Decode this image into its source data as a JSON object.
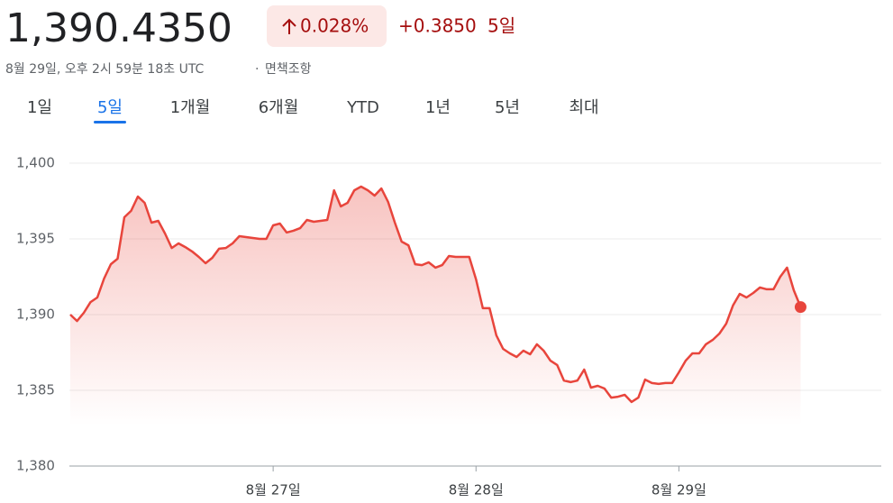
{
  "header": {
    "price": "1,390.4350",
    "change_percent": "0.028%",
    "change_value": "+0.3850",
    "change_period": "5일",
    "timestamp": "8월 29일, 오후 2시 59분 18초 UTC",
    "separator": "·",
    "disclaimer": "면책조항"
  },
  "tabs": {
    "items": [
      "1일",
      "5일",
      "1개월",
      "6개월",
      "YTD",
      "1년",
      "5년",
      "최대"
    ],
    "selected": 1
  },
  "chart_data": {
    "type": "line",
    "color": "#e8453c",
    "grid": true,
    "categories": [
      null,
      null,
      null,
      null,
      null,
      null,
      null,
      null,
      null,
      null,
      null,
      null,
      null,
      null,
      null,
      null,
      null,
      null,
      null,
      null,
      null,
      null,
      null,
      null,
      null,
      null,
      null,
      null,
      null,
      null,
      "8월 27일",
      null,
      null,
      null,
      null,
      null,
      null,
      null,
      null,
      null,
      null,
      null,
      null,
      null,
      null,
      null,
      null,
      null,
      null,
      null,
      null,
      null,
      null,
      null,
      null,
      null,
      null,
      null,
      null,
      null,
      "8월 28일",
      null,
      null,
      null,
      null,
      null,
      null,
      null,
      null,
      null,
      null,
      null,
      null,
      null,
      null,
      null,
      null,
      null,
      null,
      null,
      null,
      null,
      null,
      null,
      null,
      null,
      null,
      null,
      null,
      null,
      "8월 29일",
      null,
      null,
      null,
      null,
      null,
      null,
      null,
      null,
      null,
      null,
      null,
      null,
      null,
      null,
      null,
      null,
      null,
      null,
      null,
      null,
      null,
      null,
      null,
      null,
      null,
      null,
      null,
      null,
      null
    ],
    "values": [
      1390.0,
      1389.58,
      1390.12,
      1390.83,
      1391.13,
      1392.38,
      1393.33,
      1393.69,
      1396.43,
      1396.85,
      1397.8,
      1397.38,
      1396.07,
      1396.19,
      1395.36,
      1394.4,
      1394.7,
      1394.46,
      1394.17,
      1393.81,
      1393.39,
      1393.75,
      1394.35,
      1394.4,
      1394.7,
      1395.18,
      1395.12,
      1395.06,
      1395.0,
      1395.0,
      1395.89,
      1396.01,
      1395.42,
      1395.54,
      1395.71,
      1396.25,
      1396.13,
      1396.19,
      1396.25,
      1398.21,
      1397.14,
      1397.38,
      1398.21,
      1398.45,
      1398.21,
      1397.86,
      1398.33,
      1397.44,
      1396.07,
      1394.82,
      1394.58,
      1393.33,
      1393.27,
      1393.45,
      1393.1,
      1393.27,
      1393.87,
      1393.81,
      1393.81,
      1393.81,
      1392.32,
      1390.42,
      1390.42,
      1388.63,
      1387.74,
      1387.44,
      1387.2,
      1387.62,
      1387.38,
      1388.04,
      1387.62,
      1386.96,
      1386.67,
      1385.65,
      1385.54,
      1385.65,
      1386.37,
      1385.18,
      1385.3,
      1385.12,
      1384.52,
      1384.58,
      1384.7,
      1384.23,
      1384.52,
      1385.71,
      1385.48,
      1385.42,
      1385.48,
      1385.48,
      1386.19,
      1386.96,
      1387.44,
      1387.44,
      1388.04,
      1388.33,
      1388.75,
      1389.4,
      1390.6,
      1391.37,
      1391.13,
      1391.43,
      1391.79,
      1391.67,
      1391.67,
      1392.5,
      1393.1,
      1391.61,
      1390.5,
      null,
      null,
      null,
      null,
      null,
      null,
      null,
      null,
      null,
      null,
      null
    ],
    "ylim": [
      1380,
      1400
    ],
    "yticks": [
      {
        "value": 1380,
        "label": "1,380"
      },
      {
        "value": 1385,
        "label": "1,385"
      },
      {
        "value": 1390,
        "label": "1,390"
      },
      {
        "value": 1395,
        "label": "1,395"
      },
      {
        "value": 1400,
        "label": "1,400"
      }
    ]
  }
}
